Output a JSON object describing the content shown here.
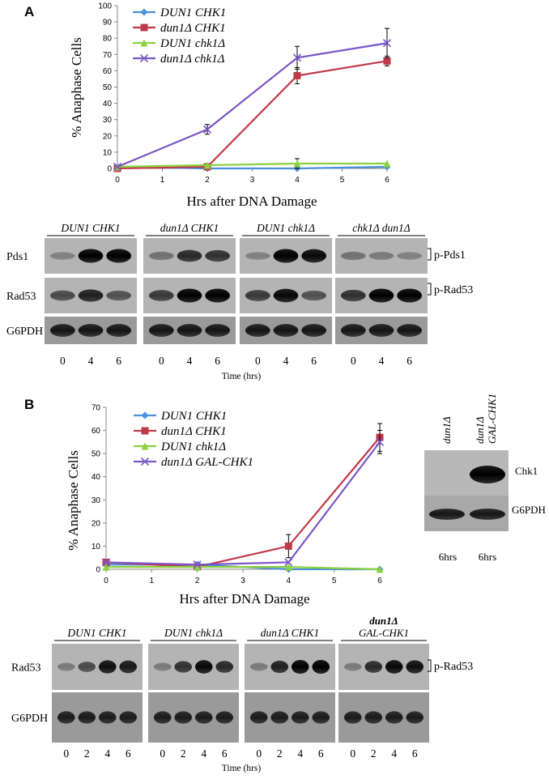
{
  "panels": [
    {
      "label": "A",
      "chart_data": {
        "type": "line",
        "title": "",
        "xlabel": "Hrs after DNA Damage",
        "ylabel": "% Anaphase Cells",
        "xlim": [
          0,
          6
        ],
        "ylim": [
          0,
          100
        ],
        "xticks": [
          "0",
          "1",
          "2",
          "3",
          "4",
          "5",
          "6"
        ],
        "yticks": [
          "0",
          "10",
          "20",
          "30",
          "40",
          "50",
          "60",
          "70",
          "80",
          "90",
          "100"
        ],
        "grid": false,
        "legend_position": "top-left",
        "series": [
          {
            "name": "DUN1 CHK1",
            "color": "#4a90d9",
            "marker": "diamond",
            "x": [
              0,
              2,
              4,
              6
            ],
            "y": [
              1,
              0,
              0,
              1
            ],
            "err": [
              0,
              0,
              0,
              0
            ]
          },
          {
            "name": "dun1Δ CHK1",
            "color": "#c0394a",
            "marker": "square",
            "x": [
              0,
              2,
              4,
              6
            ],
            "y": [
              0,
              1,
              57,
              66
            ],
            "err": [
              0,
              0,
              5,
              3
            ]
          },
          {
            "name": "DUN1 chk1Δ",
            "color": "#8cd13f",
            "marker": "triangle",
            "x": [
              0,
              2,
              4,
              6
            ],
            "y": [
              1,
              2,
              3,
              3
            ],
            "err": [
              0,
              0,
              3,
              0
            ]
          },
          {
            "name": "dun1Δ chk1Δ",
            "color": "#7b56c7",
            "marker": "x",
            "x": [
              0,
              2,
              4,
              6
            ],
            "y": [
              1,
              24,
              68,
              77
            ],
            "err": [
              0,
              3,
              7,
              9
            ]
          }
        ]
      },
      "blot": {
        "groups": [
          "DUN1 CHK1",
          "dun1Δ CHK1",
          "DUN1 chk1Δ",
          "chk1Δ dun1Δ"
        ],
        "rows": [
          "Pds1",
          "Rad53",
          "G6PDH"
        ],
        "bracket_labels": [
          "p-Pds1",
          "p-Rad53"
        ],
        "timepoints": [
          "0",
          "4",
          "6"
        ],
        "time_label": "Time (hrs)"
      }
    },
    {
      "label": "B",
      "chart_data": {
        "type": "line",
        "title": "",
        "xlabel": "Hrs after DNA Damage",
        "ylabel": "% Anaphase Cells",
        "xlim": [
          0,
          6
        ],
        "ylim": [
          0,
          70
        ],
        "xticks": [
          "0",
          "1",
          "2",
          "3",
          "4",
          "5",
          "6"
        ],
        "yticks": [
          "0",
          "10",
          "20",
          "30",
          "40",
          "50",
          "60",
          "70"
        ],
        "grid": false,
        "legend_position": "top-left",
        "series": [
          {
            "name": "DUN1 CHK1",
            "color": "#4a90d9",
            "marker": "diamond",
            "x": [
              0,
              2,
              4,
              6
            ],
            "y": [
              2,
              2,
              0,
              0
            ],
            "err": [
              0,
              1,
              0,
              0
            ]
          },
          {
            "name": "dun1Δ CHK1",
            "color": "#c0394a",
            "marker": "square",
            "x": [
              0,
              2,
              4,
              6
            ],
            "y": [
              3,
              1,
              10,
              57
            ],
            "err": [
              0,
              0,
              5,
              6
            ]
          },
          {
            "name": "DUN1 chk1Δ",
            "color": "#8cd13f",
            "marker": "triangle",
            "x": [
              0,
              2,
              4,
              6
            ],
            "y": [
              1,
              1,
              1,
              0
            ],
            "err": [
              0,
              0,
              0,
              0
            ]
          },
          {
            "name": "dun1Δ GAL-CHK1",
            "color": "#7b56c7",
            "marker": "x",
            "x": [
              0,
              2,
              4,
              6
            ],
            "y": [
              3,
              2,
              3,
              55
            ],
            "err": [
              0,
              0,
              0,
              5
            ]
          }
        ]
      },
      "blot": {
        "groups": [
          "DUN1 CHK1",
          "DUN1 chk1Δ",
          "dun1Δ CHK1",
          "dun1Δ GAL-CHK1"
        ],
        "rows": [
          "Rad53",
          "G6PDH"
        ],
        "bracket_labels": [
          "p-Rad53"
        ],
        "timepoints": [
          "0",
          "2",
          "4",
          "6"
        ],
        "time_label": "Time (hrs)"
      },
      "side_blot": {
        "columns": [
          "dun1Δ",
          "dun1Δ GAL-CHK1"
        ],
        "rows": [
          "Chk1",
          "G6PDH"
        ],
        "bottom_labels": [
          "6hrs",
          "6hrs"
        ]
      }
    }
  ]
}
